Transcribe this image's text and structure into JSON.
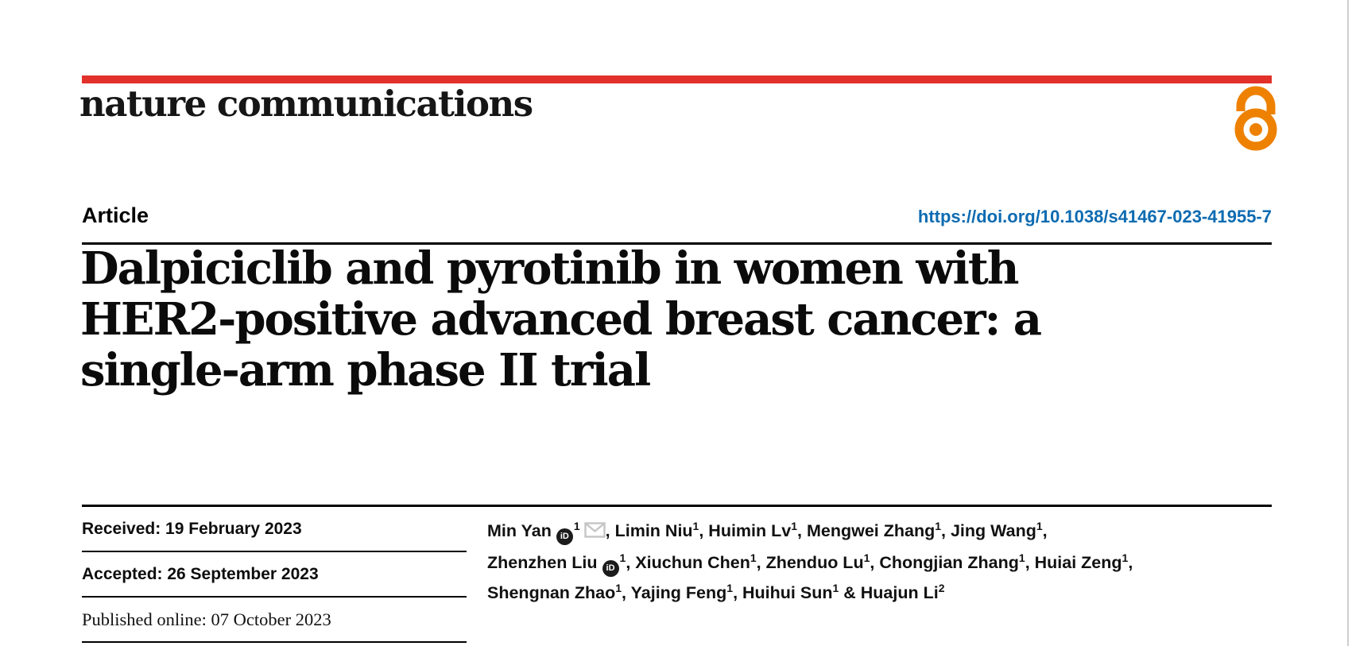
{
  "colors": {
    "accent_red": "#e2312a",
    "link_blue": "#0d6bb1",
    "open_access_orange": "#ee8100",
    "rule_black": "#000000",
    "edge_gray": "#cdcdcd",
    "envelope_gray": "#c5c5c5"
  },
  "journal": {
    "name": "nature communications",
    "open_access_icon": "open padlock"
  },
  "article": {
    "type_label": "Article",
    "doi": "https://doi.org/10.1038/s41467-023-41955-7"
  },
  "title": {
    "lines": [
      "Dalpiciclib and pyrotinib in women with",
      "HER2-positive advanced breast cancer: a",
      "single-arm phase II trial"
    ]
  },
  "dates": {
    "received": "Received: 19 February 2023",
    "accepted": "Accepted: 26 September 2023",
    "published": "Published online: 07 October 2023"
  },
  "authors": {
    "list": [
      {
        "name": "Min Yan",
        "sup": "1",
        "orcid": true,
        "email": true
      },
      {
        "name": "Limin Niu",
        "sup": "1"
      },
      {
        "name": "Huimin Lv",
        "sup": "1"
      },
      {
        "name": "Mengwei Zhang",
        "sup": "1"
      },
      {
        "name": "Jing Wang",
        "sup": "1"
      },
      {
        "name": "Zhenzhen Liu",
        "sup": "1",
        "orcid": true
      },
      {
        "name": "Xiuchun Chen",
        "sup": "1"
      },
      {
        "name": "Zhenduo Lu",
        "sup": "1"
      },
      {
        "name": "Chongjian Zhang",
        "sup": "1"
      },
      {
        "name": "Huiai Zeng",
        "sup": "1"
      },
      {
        "name": "Shengnan Zhao",
        "sup": "1"
      },
      {
        "name": "Yajing Feng",
        "sup": "1"
      },
      {
        "name": "Huihui Sun",
        "sup": "1"
      },
      {
        "name": "Huajun Li",
        "sup": "2"
      }
    ],
    "line_breaks_after": [
      4,
      9
    ],
    "orcid_icon_text": "iD"
  }
}
